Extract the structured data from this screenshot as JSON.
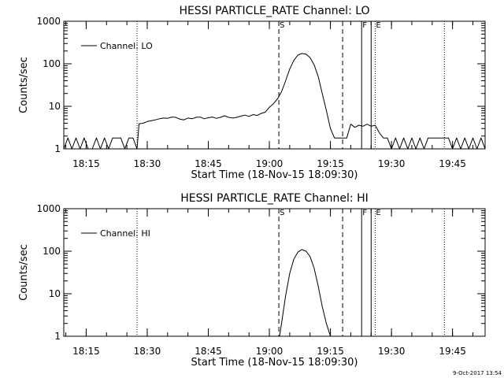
{
  "footer": {
    "timestamp": "9-Oct-2017 13:54"
  },
  "chart_data": [
    {
      "type": "line",
      "title": "HESSI PARTICLE_RATE Channel: LO",
      "xlabel": "Start Time (18-Nov-15 18:09:30)",
      "ylabel": "Counts/sec",
      "yscale": "log",
      "xlim": [
        "18:09:30",
        "19:53:00"
      ],
      "ylim": [
        1,
        1000
      ],
      "xticks": [
        "18:15",
        "18:30",
        "18:45",
        "19:00",
        "19:15",
        "19:30",
        "19:45"
      ],
      "yticks": [
        "1",
        "10",
        "100",
        "1000"
      ],
      "legend": {
        "position": "top-left",
        "entries": [
          "Channel: LO"
        ]
      },
      "markers": [
        {
          "time": "18:27:30",
          "style": "dotted",
          "label": ""
        },
        {
          "time": "19:02:20",
          "style": "dashed",
          "label": "S"
        },
        {
          "time": "19:18:00",
          "style": "dashed",
          "label": ""
        },
        {
          "time": "19:22:40",
          "style": "solid",
          "label": "F"
        },
        {
          "time": "19:25:00",
          "style": "solid",
          "label": ""
        },
        {
          "time": "19:26:00",
          "style": "dotted",
          "label": "E"
        },
        {
          "time": "19:43:00",
          "style": "dotted",
          "label": ""
        }
      ],
      "series": [
        {
          "name": "Channel: LO",
          "x": [
            "18:09:30",
            "18:10:30",
            "18:11:30",
            "18:12:30",
            "18:13:30",
            "18:14:30",
            "18:15:30",
            "18:16:30",
            "18:17:30",
            "18:18:30",
            "18:19:30",
            "18:20:30",
            "18:21:30",
            "18:22:30",
            "18:23:30",
            "18:24:30",
            "18:25:30",
            "18:26:30",
            "18:27:30",
            "18:28:00",
            "18:29:00",
            "18:30:00",
            "18:31:00",
            "18:32:00",
            "18:33:00",
            "18:34:00",
            "18:35:00",
            "18:36:00",
            "18:37:00",
            "18:38:00",
            "18:39:00",
            "18:40:00",
            "18:41:00",
            "18:42:00",
            "18:43:00",
            "18:44:00",
            "18:45:00",
            "18:46:00",
            "18:47:00",
            "18:48:00",
            "18:49:00",
            "18:50:00",
            "18:51:00",
            "18:52:00",
            "18:53:00",
            "18:54:00",
            "18:55:00",
            "18:56:00",
            "18:57:00",
            "18:58:00",
            "18:59:00",
            "19:00:00",
            "19:01:00",
            "19:02:00",
            "19:03:00",
            "19:04:00",
            "19:05:00",
            "19:06:00",
            "19:07:00",
            "19:08:00",
            "19:09:00",
            "19:10:00",
            "19:11:00",
            "19:12:00",
            "19:13:00",
            "19:14:00",
            "19:15:00",
            "19:16:00",
            "19:17:00",
            "19:18:00",
            "19:19:00",
            "19:20:00",
            "19:21:00",
            "19:22:00",
            "19:23:00",
            "19:24:00",
            "19:25:00",
            "19:26:00",
            "19:27:00",
            "19:28:00",
            "19:29:00",
            "19:30:00",
            "19:31:00",
            "19:32:00",
            "19:33:00",
            "19:34:00",
            "19:35:00",
            "19:36:00",
            "19:37:00",
            "19:38:00",
            "19:39:00",
            "19:40:00",
            "19:41:00",
            "19:42:00",
            "19:43:00",
            "19:44:00",
            "19:45:00",
            "19:46:00",
            "19:47:00",
            "19:48:00",
            "19:49:00",
            "19:50:00",
            "19:51:00",
            "19:52:00",
            "19:53:00"
          ],
          "values": [
            1,
            1.8,
            1,
            1.8,
            1,
            1.8,
            1,
            1,
            1.8,
            1,
            1.8,
            1,
            1.8,
            1.8,
            1.8,
            1,
            1.8,
            1.8,
            1,
            3.9,
            4,
            4.4,
            4.6,
            4.8,
            5.1,
            5.3,
            5.2,
            5.6,
            5.5,
            5,
            4.8,
            5.3,
            5.1,
            5.5,
            5.6,
            5.1,
            5.4,
            5.6,
            5.2,
            5.5,
            6,
            5.5,
            5.3,
            5.5,
            5.9,
            6.2,
            5.8,
            6.4,
            6.1,
            6.8,
            7.3,
            9.5,
            11.5,
            15,
            22,
            40,
            75,
            120,
            160,
            175,
            168,
            140,
            95,
            50,
            20,
            8,
            3,
            1.8,
            1.8,
            1.8,
            1.8,
            3.8,
            3.2,
            3.6,
            3.4,
            3.8,
            3.4,
            3.6,
            2.4,
            1.8,
            1.8,
            1,
            1.8,
            1,
            1.8,
            1,
            1.8,
            1,
            1.8,
            1,
            1.8,
            1.8,
            1.8,
            1.8,
            1.8,
            1.8,
            1,
            1.8,
            1,
            1.8,
            1,
            1.8,
            1,
            1.8,
            1
          ]
        }
      ]
    },
    {
      "type": "line",
      "title": "HESSI PARTICLE_RATE Channel: HI",
      "xlabel": "Start Time (18-Nov-15 18:09:30)",
      "ylabel": "Counts/sec",
      "yscale": "log",
      "xlim": [
        "18:09:30",
        "19:53:00"
      ],
      "ylim": [
        1,
        1000
      ],
      "xticks": [
        "18:15",
        "18:30",
        "18:45",
        "19:00",
        "19:15",
        "19:30",
        "19:45"
      ],
      "yticks": [
        "1",
        "10",
        "100",
        "1000"
      ],
      "legend": {
        "position": "top-left",
        "entries": [
          "Channel: HI"
        ]
      },
      "markers": [
        {
          "time": "18:27:30",
          "style": "dotted",
          "label": ""
        },
        {
          "time": "19:02:20",
          "style": "dashed",
          "label": "S"
        },
        {
          "time": "19:18:00",
          "style": "dashed",
          "label": ""
        },
        {
          "time": "19:22:40",
          "style": "solid",
          "label": "F"
        },
        {
          "time": "19:25:00",
          "style": "solid",
          "label": ""
        },
        {
          "time": "19:26:00",
          "style": "dotted",
          "label": "E"
        },
        {
          "time": "19:43:00",
          "style": "dotted",
          "label": ""
        }
      ],
      "series": [
        {
          "name": "Channel: HI",
          "x": [
            "19:02:30",
            "19:03:00",
            "19:04:00",
            "19:05:00",
            "19:06:00",
            "19:07:00",
            "19:08:00",
            "19:09:00",
            "19:10:00",
            "19:11:00",
            "19:12:00",
            "19:13:00",
            "19:14:00",
            "19:15:00"
          ],
          "values": [
            1,
            2,
            9,
            30,
            65,
            95,
            110,
            100,
            75,
            40,
            15,
            5,
            2,
            1
          ]
        }
      ]
    }
  ]
}
